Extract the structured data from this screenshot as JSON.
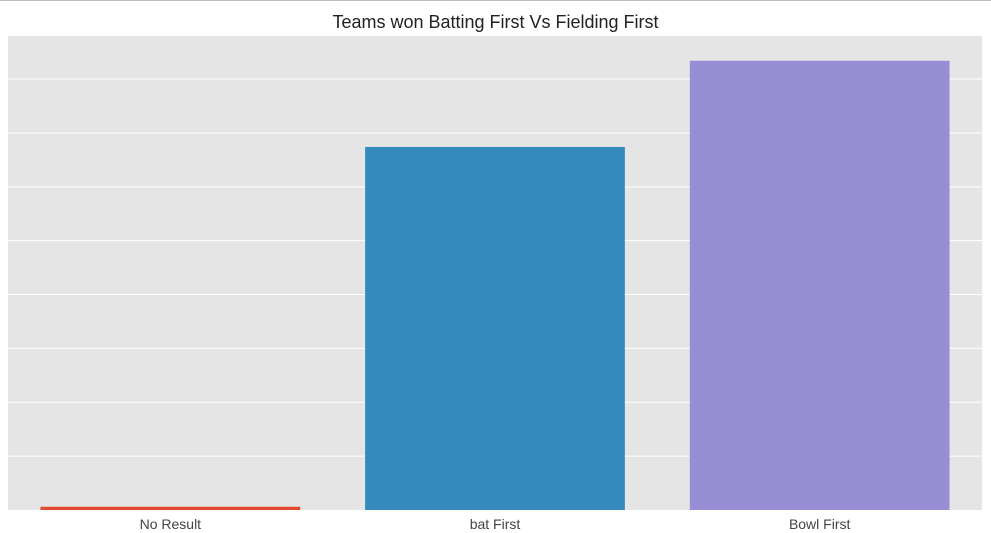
{
  "chart_data": {
    "type": "bar",
    "title": "Teams won Batting First Vs Fielding First",
    "categories": [
      "No Result",
      "bat First",
      "Bowl First"
    ],
    "values": [
      3,
      337,
      417
    ],
    "colors": [
      "#E24A33",
      "#348ABD",
      "#988ED5"
    ],
    "ylim": [
      0,
      440
    ],
    "grid": true,
    "background": "#E5E5E5"
  }
}
